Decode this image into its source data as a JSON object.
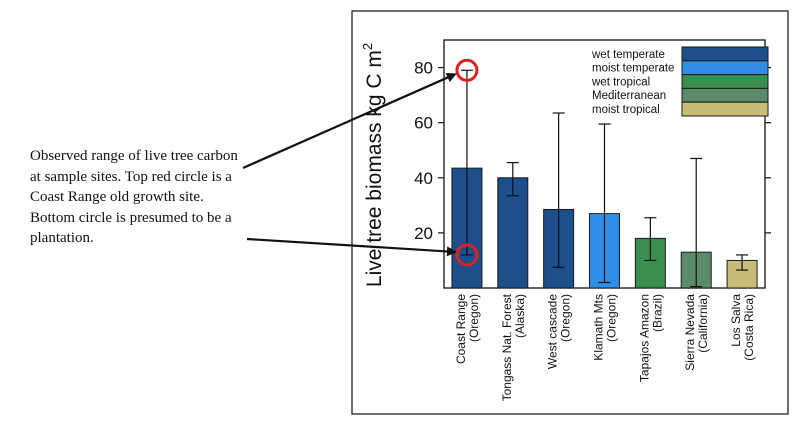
{
  "annotation": {
    "text": "Observed range of live tree carbon at sample sites. Top red circle is a Coast Range old growth site. Bottom circle is presumed to be a plantation."
  },
  "chart_data": {
    "type": "bar",
    "ylabel": "Live tree biomass  kg C m",
    "ylabel_superscript": "2",
    "ylim": [
      0,
      90
    ],
    "yticks": [
      20,
      40,
      60,
      80
    ],
    "categories": [
      [
        "Coast Range",
        "(Oregon)"
      ],
      [
        "Tongass Nat. Forest",
        "(Alaska)"
      ],
      [
        "West cascade",
        "(Oregon)"
      ],
      [
        "Klamath Mts",
        "(Oregon)"
      ],
      [
        "Tapajos Amazon",
        "(Brazil)"
      ],
      [
        "Sierra Nevada",
        "(California)"
      ],
      [
        "Los Salva",
        "(Costa Rica)"
      ]
    ],
    "values": [
      43.5,
      40,
      28.5,
      27,
      18,
      13,
      10
    ],
    "error_low": [
      12,
      33.5,
      7.5,
      2,
      10,
      0.5,
      6.5
    ],
    "error_high": [
      79,
      45.5,
      63.5,
      59.5,
      25.5,
      47,
      12
    ],
    "bar_colors": [
      "#1c4f8c",
      "#1c4f8c",
      "#1c4f8c",
      "#2f8fe6",
      "#3a8f4f",
      "#5b8b68",
      "#c8bd76"
    ],
    "legend": {
      "position": "top-right",
      "entries": [
        {
          "label": "wet temperate",
          "color": "#1c4f8c"
        },
        {
          "label": "moist temperate",
          "color": "#2f8fe6"
        },
        {
          "label": "wet tropical",
          "color": "#3a8f4f"
        },
        {
          "label": "Mediterranean",
          "color": "#5b8b68"
        },
        {
          "label": "moist tropical",
          "color": "#c8bd76"
        }
      ]
    },
    "highlight_circles": [
      {
        "category_index": 0,
        "value": 79,
        "color": "#e02020"
      },
      {
        "category_index": 0,
        "value": 12,
        "color": "#e02020"
      }
    ]
  }
}
